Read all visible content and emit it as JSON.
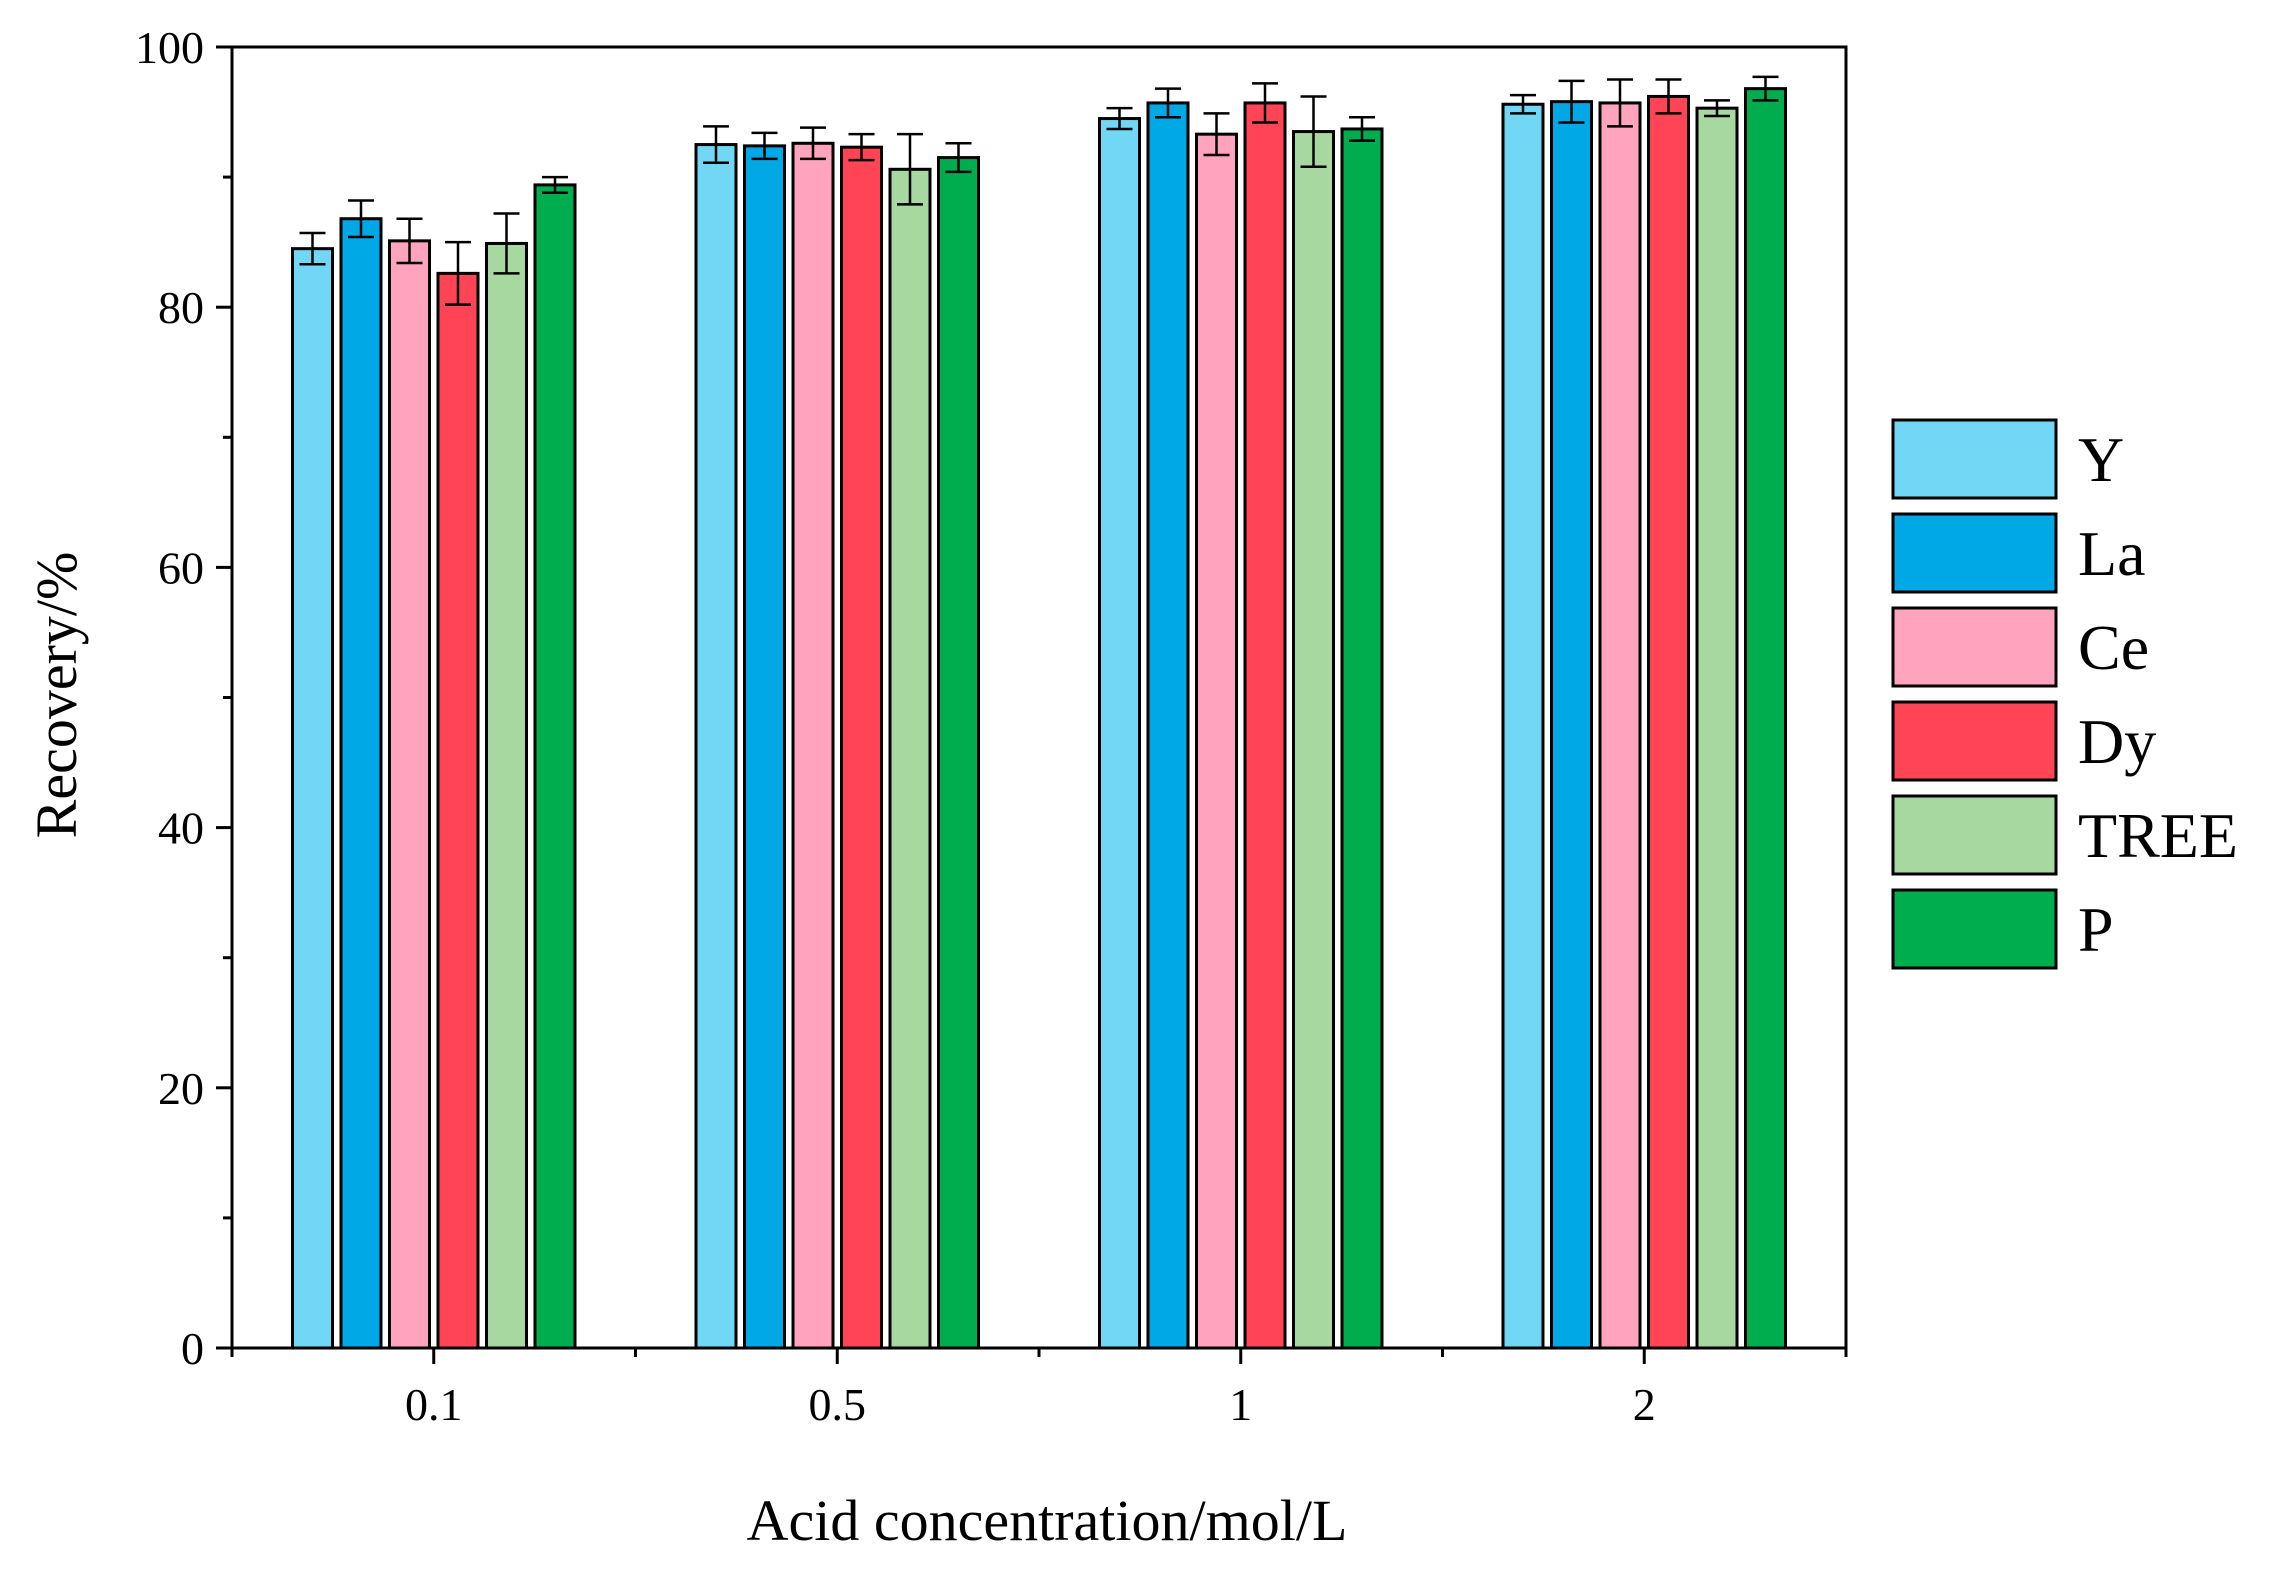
{
  "chart_data": {
    "type": "bar",
    "title": "",
    "xlabel": "Acid concentration/mol/L",
    "ylabel": "Recovery/%",
    "ylim": [
      0,
      100
    ],
    "yticks": [
      0,
      20,
      40,
      60,
      80,
      100
    ],
    "categories": [
      "0.1",
      "0.5",
      "1",
      "2"
    ],
    "legend_position": "right",
    "series": [
      {
        "name": "Y",
        "color": "#72d6f5",
        "values": [
          84.5,
          92.5,
          94.5,
          95.6
        ],
        "errors": [
          1.2,
          1.4,
          0.8,
          0.7
        ]
      },
      {
        "name": "La",
        "color": "#00a8e6",
        "values": [
          86.8,
          92.4,
          95.7,
          95.8
        ],
        "errors": [
          1.4,
          1.0,
          1.1,
          1.6
        ]
      },
      {
        "name": "Ce",
        "color": "#ffa3bf",
        "values": [
          85.1,
          92.6,
          93.3,
          95.7
        ],
        "errors": [
          1.7,
          1.2,
          1.6,
          1.8
        ]
      },
      {
        "name": "Dy",
        "color": "#ff4455",
        "values": [
          82.6,
          92.3,
          95.7,
          96.2
        ],
        "errors": [
          2.4,
          1.0,
          1.5,
          1.3
        ]
      },
      {
        "name": "TREE",
        "color": "#a6d8a0",
        "values": [
          84.9,
          90.6,
          93.5,
          95.3
        ],
        "errors": [
          2.3,
          2.7,
          2.7,
          0.6
        ]
      },
      {
        "name": "P",
        "color": "#00ad4e",
        "values": [
          89.4,
          91.5,
          93.7,
          96.8
        ],
        "errors": [
          0.6,
          1.1,
          0.9,
          0.9
        ]
      }
    ]
  }
}
